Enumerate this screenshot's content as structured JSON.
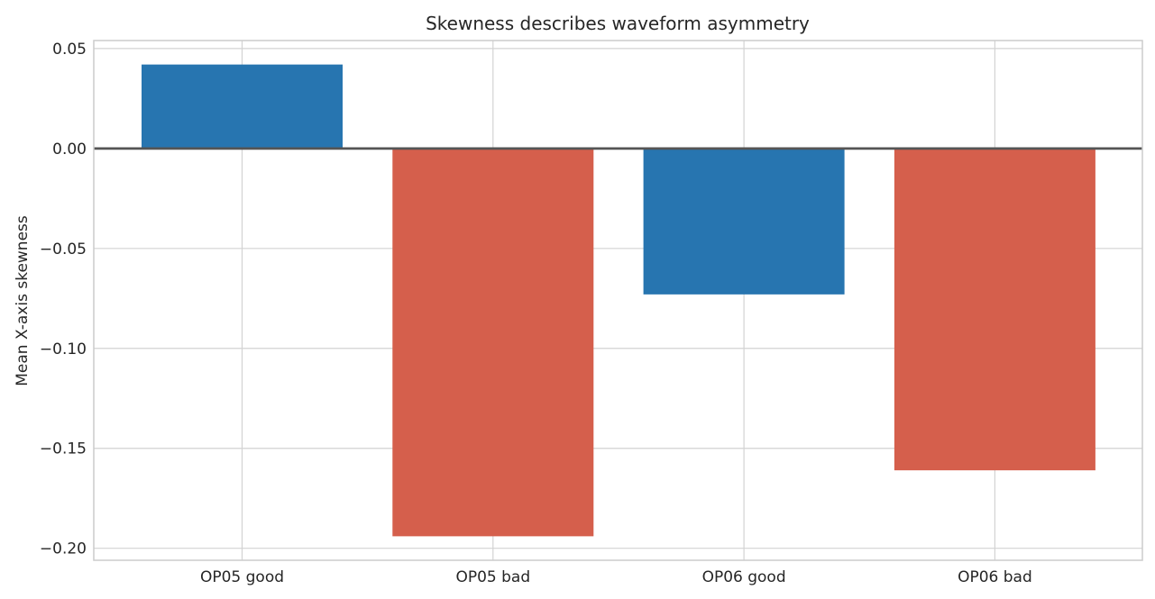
{
  "chart_data": {
    "type": "bar",
    "title": "Skewness describes waveform asymmetry",
    "xlabel": "",
    "ylabel": "Mean X-axis skewness",
    "categories": [
      "OP05 good",
      "OP05 bad",
      "OP06 good",
      "OP06 bad"
    ],
    "values": [
      0.042,
      -0.194,
      -0.073,
      -0.161
    ],
    "bar_colors": [
      "#2775b0",
      "#d55f4c",
      "#2775b0",
      "#d55f4c"
    ],
    "ylim": [
      -0.206,
      0.054
    ],
    "yticks": [
      0.05,
      0.0,
      -0.05,
      -0.1,
      -0.15,
      -0.2
    ],
    "ytick_labels": [
      "0.05",
      "0.00",
      "−0.05",
      "−0.10",
      "−0.15",
      "−0.20"
    ],
    "grid": true,
    "zero_line": true,
    "zero_line_color": "#555555"
  }
}
